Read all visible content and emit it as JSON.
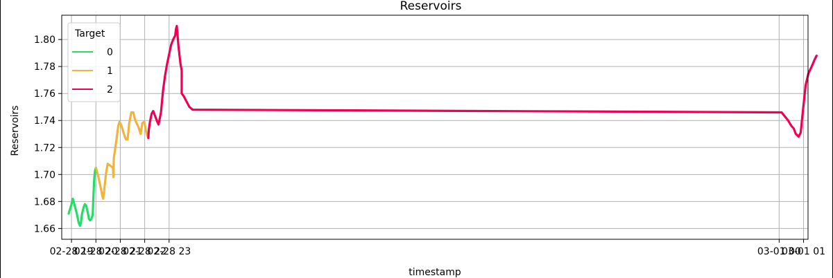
{
  "chart_data": {
    "type": "line",
    "title": "Reservoirs",
    "xlabel": "timestamp",
    "ylabel": "Reservoirs",
    "xlim": [
      "2024-02-28 18:36",
      "2024-03-01 01:11"
    ],
    "ylim": [
      1.652,
      1.818
    ],
    "x_ticks": [
      "2024-02-28 19:00",
      "2024-02-28 20:00",
      "2024-02-28 21:00",
      "2024-02-28 22:00",
      "2024-02-28 23:00",
      "2024-03-01 00:00",
      "2024-03-01 01:00"
    ],
    "x_tick_labels": [
      "02-28 19",
      "02-28 20",
      "02-28 21",
      "02-28 22",
      "02-28 23",
      "03-01 00",
      "03-01 01"
    ],
    "y_ticks": [
      1.66,
      1.68,
      1.7,
      1.72,
      1.74,
      1.76,
      1.78,
      1.8
    ],
    "y_tick_labels": [
      "1.66",
      "1.68",
      "1.70",
      "1.72",
      "1.74",
      "1.76",
      "1.78",
      "1.80"
    ],
    "grid": true,
    "legend": {
      "title": "Target",
      "placement": "top-left"
    },
    "series": [
      {
        "name": "0",
        "color": "#22dd66",
        "x": [
          "2024-02-28 18:53",
          "2024-02-28 19:00",
          "2024-02-28 19:03",
          "2024-02-28 19:07",
          "2024-02-28 19:13",
          "2024-02-28 19:18",
          "2024-02-28 19:21",
          "2024-02-28 19:23",
          "2024-02-28 19:26",
          "2024-02-28 19:30",
          "2024-02-28 19:33",
          "2024-02-28 19:36",
          "2024-02-28 19:40",
          "2024-02-28 19:43",
          "2024-02-28 19:46",
          "2024-02-28 19:49",
          "2024-02-28 19:52",
          "2024-02-28 19:54",
          "2024-02-28 19:56",
          "2024-02-28 19:58",
          "2024-02-28 20:00"
        ],
        "y": [
          1.671,
          1.678,
          1.682,
          1.678,
          1.671,
          1.664,
          1.662,
          1.664,
          1.671,
          1.676,
          1.678,
          1.677,
          1.672,
          1.667,
          1.666,
          1.667,
          1.67,
          1.684,
          1.697,
          1.703,
          1.705
        ]
      },
      {
        "name": "1",
        "color": "#f0b43c",
        "x": [
          "2024-02-28 20:00",
          "2024-02-28 20:02",
          "2024-02-28 20:07",
          "2024-02-28 20:12",
          "2024-02-28 20:16",
          "2024-02-28 20:18",
          "2024-02-28 20:21",
          "2024-02-28 20:25",
          "2024-02-28 20:29",
          "2024-02-28 20:33",
          "2024-02-28 20:38",
          "2024-02-28 20:42",
          "2024-02-28 20:43",
          "2024-02-28 20:44",
          "2024-02-28 20:47",
          "2024-02-28 20:51",
          "2024-02-28 20:55",
          "2024-02-28 20:58",
          "2024-02-28 21:03",
          "2024-02-28 21:08",
          "2024-02-28 21:10",
          "2024-02-28 21:14",
          "2024-02-28 21:18",
          "2024-02-28 21:22",
          "2024-02-28 21:27",
          "2024-02-28 21:32",
          "2024-02-28 21:36",
          "2024-02-28 21:40",
          "2024-02-28 21:45",
          "2024-02-28 21:50",
          "2024-02-28 21:54",
          "2024-02-28 21:59",
          "2024-02-28 22:02",
          "2024-02-28 22:06",
          "2024-02-28 22:09"
        ],
        "y": [
          1.705,
          1.703,
          1.697,
          1.69,
          1.684,
          1.682,
          1.69,
          1.701,
          1.708,
          1.707,
          1.706,
          1.705,
          1.698,
          1.712,
          1.718,
          1.727,
          1.736,
          1.739,
          1.736,
          1.731,
          1.729,
          1.726,
          1.726,
          1.738,
          1.746,
          1.746,
          1.741,
          1.738,
          1.735,
          1.73,
          1.738,
          1.739,
          1.734,
          1.729,
          1.727
        ]
      },
      {
        "name": "2",
        "color": "#ee0055",
        "x": [
          "2024-02-28 22:09",
          "2024-02-28 22:10",
          "2024-02-28 22:13",
          "2024-02-28 22:17",
          "2024-02-28 22:21",
          "2024-02-28 22:26",
          "2024-02-28 22:31",
          "2024-02-28 22:34",
          "2024-02-28 22:40",
          "2024-02-28 22:45",
          "2024-02-28 22:50",
          "2024-02-28 22:55",
          "2024-02-28 23:00",
          "2024-02-28 23:05",
          "2024-02-28 23:10",
          "2024-02-28 23:15",
          "2024-02-28 23:17",
          "2024-02-28 23:19",
          "2024-02-28 23:23",
          "2024-02-28 23:28",
          "2024-02-28 23:31",
          "2024-02-28 23:31",
          "2024-02-28 23:36",
          "2024-02-28 23:43",
          "2024-02-28 23:50",
          "2024-02-28 23:58",
          "2024-03-01 00:06",
          "2024-03-01 00:14",
          "2024-03-01 00:22",
          "2024-03-01 00:30",
          "2024-03-01 00:36",
          "2024-03-01 00:41",
          "2024-03-01 00:45",
          "2024-03-01 00:48",
          "2024-03-01 00:53",
          "2024-03-01 00:58",
          "2024-03-01 01:05",
          "2024-03-01 01:12",
          "2024-03-01 01:20",
          "2024-03-01 01:27",
          "2024-03-01 01:32"
        ],
        "y": [
          1.727,
          1.733,
          1.739,
          1.745,
          1.747,
          1.743,
          1.739,
          1.737,
          1.746,
          1.762,
          1.773,
          1.782,
          1.789,
          1.796,
          1.8,
          1.803,
          1.808,
          1.81,
          1.795,
          1.782,
          1.777,
          1.76,
          1.758,
          1.754,
          1.75,
          1.748,
          1.746,
          1.743,
          1.74,
          1.736,
          1.734,
          1.73,
          1.729,
          1.728,
          1.731,
          1.746,
          1.766,
          1.775,
          1.78,
          1.785,
          1.788
        ]
      }
    ]
  }
}
